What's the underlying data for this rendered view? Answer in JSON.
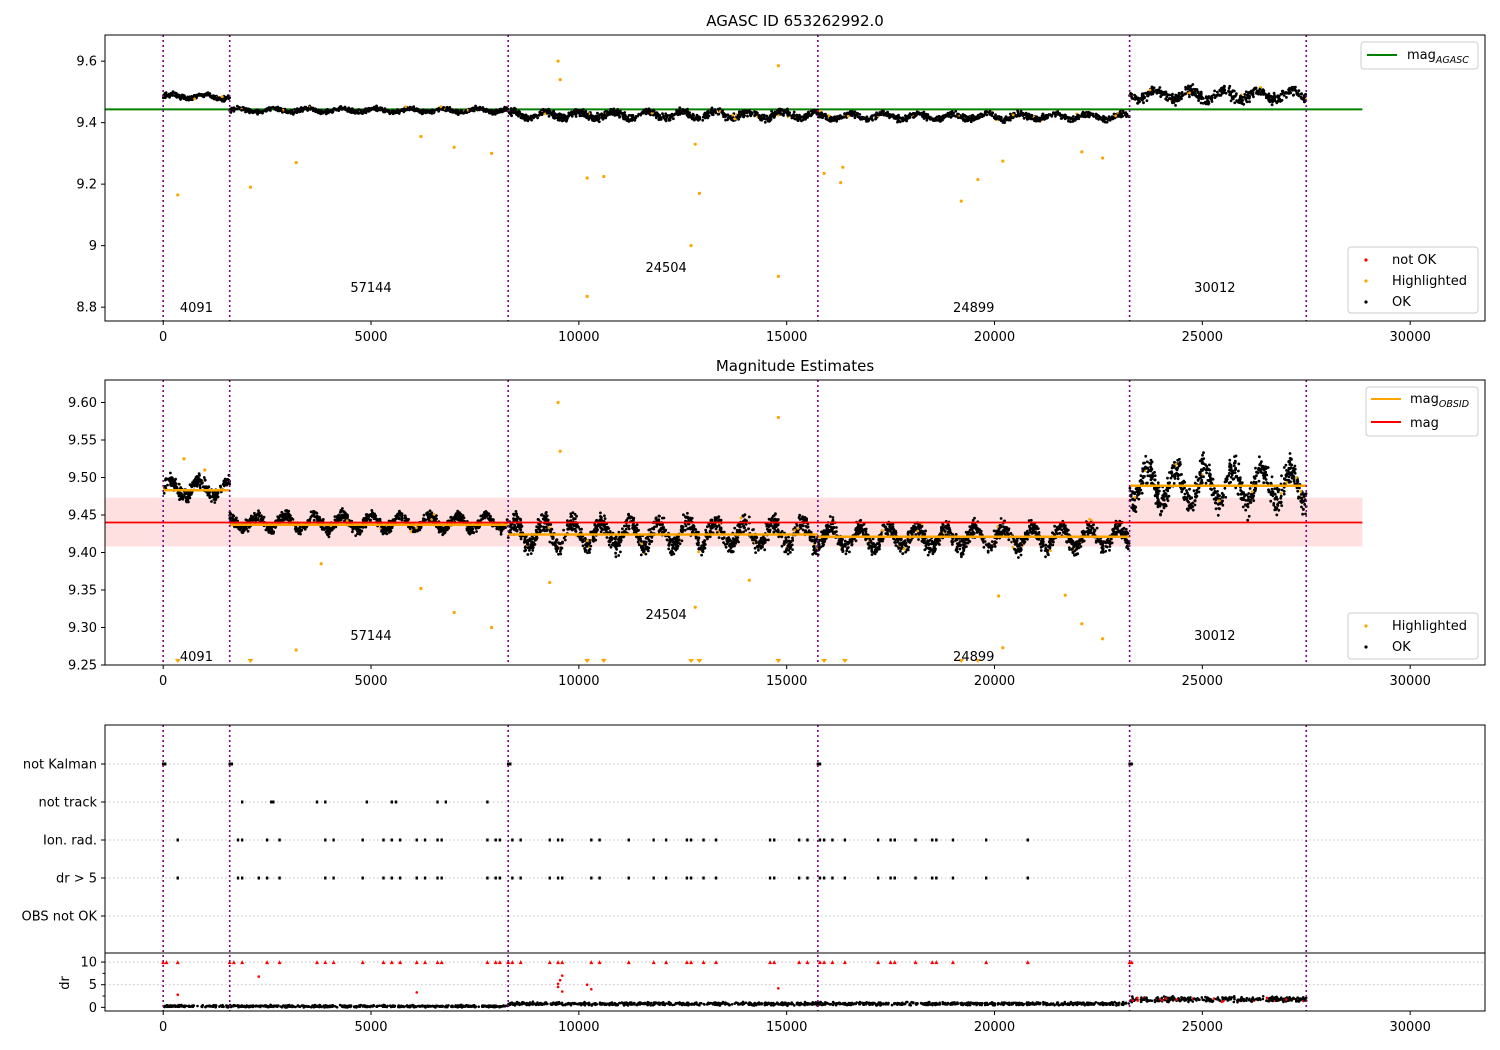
{
  "chart_data": [
    {
      "type": "scatter",
      "title": "AGASC ID 653262992.0",
      "xlim": [
        -1400,
        31800
      ],
      "ylim": [
        8.755,
        9.685
      ],
      "x_ticks": [
        0,
        5000,
        10000,
        15000,
        20000,
        25000,
        30000
      ],
      "y_ticks": [
        8.8,
        9.0,
        9.2,
        9.4,
        9.6
      ],
      "grid": false,
      "legends": [
        {
          "placement": "upper right",
          "entries": [
            {
              "label": "mag",
              "subscript": "AGASC",
              "color": "#008000",
              "kind": "line"
            }
          ]
        },
        {
          "placement": "lower right",
          "entries": [
            {
              "label": "not OK",
              "color": "#ff0000",
              "kind": "dot"
            },
            {
              "label": "Highlighted",
              "color": "#ffa500",
              "kind": "dot"
            },
            {
              "label": "OK",
              "color": "#000000",
              "kind": "dot"
            }
          ]
        }
      ],
      "vlines": [
        0,
        1600,
        8300,
        15750,
        23250,
        27500
      ],
      "obsid_labels": [
        {
          "x": 800,
          "y": 8.8,
          "text": "4091"
        },
        {
          "x": 5000,
          "y": 8.865,
          "text": "57144"
        },
        {
          "x": 12100,
          "y": 8.93,
          "text": "24504"
        },
        {
          "x": 19500,
          "y": 8.8,
          "text": "24899"
        },
        {
          "x": 25300,
          "y": 8.865,
          "text": "30012"
        }
      ],
      "mag_agasc": {
        "value": 9.443,
        "x_range": [
          -1400,
          28850
        ]
      },
      "segments": [
        {
          "x": [
            0,
            1600
          ],
          "mean": 9.485,
          "spread": 0.012
        },
        {
          "x": [
            1600,
            8300
          ],
          "mean": 9.44,
          "spread": 0.01
        },
        {
          "x": [
            8300,
            15750
          ],
          "mean": 9.425,
          "spread": 0.018
        },
        {
          "x": [
            15750,
            23250
          ],
          "mean": 9.42,
          "spread": 0.015
        },
        {
          "x": [
            23250,
            27500
          ],
          "mean": 9.49,
          "spread": 0.025
        }
      ],
      "highlighted_outliers": [
        [
          350,
          9.165
        ],
        [
          2100,
          9.19
        ],
        [
          3200,
          9.27
        ],
        [
          7000,
          9.32
        ],
        [
          7900,
          9.3
        ],
        [
          9500,
          9.6
        ],
        [
          9550,
          9.54
        ],
        [
          10200,
          9.22
        ],
        [
          10600,
          9.225
        ],
        [
          10200,
          8.835
        ],
        [
          12700,
          9.0
        ],
        [
          12900,
          9.17
        ],
        [
          12800,
          9.33
        ],
        [
          14800,
          9.585
        ],
        [
          14800,
          8.9
        ],
        [
          15900,
          9.235
        ],
        [
          16300,
          9.205
        ],
        [
          16350,
          9.255
        ],
        [
          19200,
          9.145
        ],
        [
          19600,
          9.215
        ],
        [
          20200,
          9.275
        ],
        [
          22100,
          9.305
        ],
        [
          22600,
          9.285
        ],
        [
          6200,
          9.355
        ]
      ]
    },
    {
      "type": "scatter",
      "title": "Magnitude Estimates",
      "xlim": [
        -1400,
        31800
      ],
      "ylim": [
        9.25,
        9.63
      ],
      "x_ticks": [
        0,
        5000,
        10000,
        15000,
        20000,
        25000,
        30000
      ],
      "y_ticks": [
        9.25,
        9.3,
        9.35,
        9.4,
        9.45,
        9.5,
        9.55,
        9.6
      ],
      "y_tick_labels": [
        "9.25",
        "9.30",
        "9.35",
        "9.40",
        "9.45",
        "9.50",
        "9.55",
        "9.60"
      ],
      "grid": false,
      "legends": [
        {
          "placement": "upper right",
          "entries": [
            {
              "label": "mag",
              "subscript": "OBSID",
              "color": "#ffa500",
              "kind": "line"
            },
            {
              "label": "mag",
              "color": "#ff0000",
              "kind": "line"
            }
          ]
        },
        {
          "placement": "lower right",
          "entries": [
            {
              "label": "Highlighted",
              "color": "#ffa500",
              "kind": "dot"
            },
            {
              "label": "OK",
              "color": "#000000",
              "kind": "dot"
            }
          ]
        }
      ],
      "mag": {
        "value": 9.44,
        "band": [
          9.408,
          9.473
        ],
        "x_range": [
          -1400,
          28850
        ]
      },
      "mag_obsid": [
        {
          "x": [
            0,
            1600
          ],
          "value": 9.483
        },
        {
          "x": [
            1600,
            8300
          ],
          "value": 9.437
        },
        {
          "x": [
            8300,
            15750
          ],
          "value": 9.424
        },
        {
          "x": [
            15750,
            23250
          ],
          "value": 9.421
        },
        {
          "x": [
            23250,
            27500
          ],
          "value": 9.489
        }
      ],
      "obsid_labels": [
        {
          "x": 800,
          "y": 9.262,
          "text": "4091"
        },
        {
          "x": 5000,
          "y": 9.29,
          "text": "57144"
        },
        {
          "x": 12100,
          "y": 9.318,
          "text": "24504"
        },
        {
          "x": 19500,
          "y": 9.262,
          "text": "24899"
        },
        {
          "x": 25300,
          "y": 9.29,
          "text": "30012"
        }
      ],
      "below_range_markers": [
        350,
        2100,
        10200,
        10600,
        12700,
        12900,
        14800,
        15900,
        16400,
        19200,
        19600
      ],
      "highlighted_outliers": [
        [
          3200,
          9.27
        ],
        [
          7000,
          9.32
        ],
        [
          7900,
          9.3
        ],
        [
          9500,
          9.6
        ],
        [
          9550,
          9.535
        ],
        [
          6200,
          9.352
        ],
        [
          3800,
          9.385
        ],
        [
          9300,
          9.36
        ],
        [
          12800,
          9.327
        ],
        [
          14100,
          9.363
        ],
        [
          14800,
          9.58
        ],
        [
          20200,
          9.273
        ],
        [
          20100,
          9.342
        ],
        [
          21700,
          9.343
        ],
        [
          22100,
          9.305
        ],
        [
          22600,
          9.285
        ],
        [
          500,
          9.525
        ],
        [
          1000,
          9.51
        ]
      ]
    },
    {
      "type": "scatter",
      "title": "",
      "xlim": [
        -1400,
        31800
      ],
      "flag_rows": [
        "not Kalman",
        "not track",
        "Ion. rad.",
        "dr > 5",
        "OBS not OK"
      ],
      "flags": {
        "not Kalman": [
          0,
          50,
          1600,
          1650,
          8300,
          8350,
          15750,
          15800,
          23250,
          23300
        ],
        "not track": [
          1900,
          2600,
          2650,
          3700,
          3900,
          4900,
          5500,
          5600,
          6600,
          6800,
          7800
        ],
        "Ion. rad.": [
          350,
          1800,
          1900,
          2500,
          2800,
          3900,
          4100,
          4800,
          5300,
          5500,
          5700,
          6100,
          6300,
          6600,
          6700,
          7800,
          8000,
          8100,
          8400,
          8600,
          9300,
          9500,
          9600,
          10300,
          10500,
          11200,
          11800,
          12100,
          12600,
          12700,
          13000,
          13300,
          14600,
          14700,
          15300,
          15500,
          15800,
          15900,
          16100,
          16400,
          17200,
          17500,
          17600,
          18100,
          18500,
          18600,
          19000,
          19800,
          20800
        ],
        "dr > 5": [
          350,
          1800,
          1900,
          2300,
          2500,
          2800,
          3900,
          4100,
          4800,
          5300,
          5500,
          5700,
          6100,
          6300,
          6600,
          6700,
          7800,
          8000,
          8100,
          8400,
          8600,
          9300,
          9500,
          9600,
          10300,
          10500,
          11200,
          11800,
          12100,
          12600,
          12700,
          13000,
          13300,
          14600,
          14700,
          15300,
          15500,
          15800,
          15900,
          16100,
          16400,
          17200,
          17500,
          17600,
          18100,
          18500,
          18600,
          19000,
          19800,
          20800
        ],
        "OBS not OK": []
      },
      "dr": {
        "ylabel": "dr",
        "ylim": [
          -0.8,
          12
        ],
        "y_ticks": [
          0,
          5,
          10
        ],
        "capped_at": 10,
        "capped_points": [
          0,
          80,
          350,
          1600,
          1700,
          1900,
          2500,
          2800,
          3700,
          3900,
          4100,
          4800,
          5300,
          5500,
          5700,
          6100,
          6300,
          6600,
          6700,
          7800,
          8000,
          8100,
          8300,
          8400,
          8600,
          9300,
          9500,
          9600,
          10300,
          10500,
          11200,
          11800,
          12100,
          12600,
          12700,
          13000,
          13300,
          14600,
          14700,
          15300,
          15500,
          15800,
          15900,
          16100,
          16400,
          17200,
          17500,
          17600,
          18100,
          18500,
          18600,
          19000,
          19800,
          20800,
          23250,
          23300
        ],
        "scattered_red": [
          [
            350,
            2.8
          ],
          [
            2300,
            6.8
          ],
          [
            6100,
            3.3
          ],
          [
            9500,
            5.2
          ],
          [
            9550,
            6.0
          ],
          [
            9600,
            7.0
          ],
          [
            9500,
            4.5
          ],
          [
            9600,
            3.5
          ],
          [
            10200,
            5.0
          ],
          [
            10300,
            4.0
          ],
          [
            14800,
            4.2
          ]
        ],
        "segments": [
          {
            "x": [
              0,
              8300
            ],
            "base": 0.25,
            "spread": 0.35
          },
          {
            "x": [
              8300,
              23250
            ],
            "base": 0.8,
            "spread": 0.5
          },
          {
            "x": [
              23250,
              27500
            ],
            "base": 1.8,
            "spread": 0.9
          }
        ]
      }
    }
  ],
  "colors": {
    "ok": "#000000",
    "highlighted": "#ffa500",
    "not_ok": "#ff0000",
    "agasc": "#008000",
    "vline": "#800080",
    "band": "#ffcccc",
    "grid": "#b0b0b0"
  }
}
